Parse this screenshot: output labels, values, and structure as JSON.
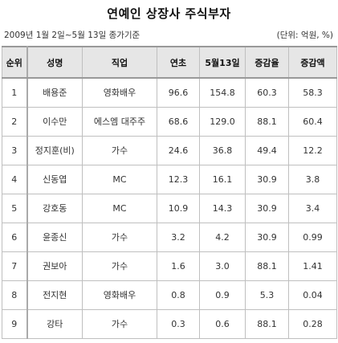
{
  "title": "연예인 상장사 주식부자",
  "period_note": "2009년 1월 2일~5월 13일 종가기준",
  "unit_note": "(단위: 억원, %)",
  "table": {
    "headers": [
      "순위",
      "성명",
      "직업",
      "연초",
      "5월13일",
      "증감율",
      "증감액"
    ],
    "rows": [
      [
        "1",
        "배용준",
        "영화배우",
        "96.6",
        "154.8",
        "60.3",
        "58.3"
      ],
      [
        "2",
        "이수만",
        "에스엠 대주주",
        "68.6",
        "129.0",
        "88.1",
        "60.4"
      ],
      [
        "3",
        "정지훈(비)",
        "가수",
        "24.6",
        "36.8",
        "49.4",
        "12.2"
      ],
      [
        "4",
        "신동엽",
        "MC",
        "12.3",
        "16.1",
        "30.9",
        "3.8"
      ],
      [
        "5",
        "강호동",
        "MC",
        "10.9",
        "14.3",
        "30.9",
        "3.4"
      ],
      [
        "6",
        "윤종신",
        "가수",
        "3.2",
        "4.2",
        "30.9",
        "0.99"
      ],
      [
        "7",
        "권보아",
        "가수",
        "1.6",
        "3.0",
        "88.1",
        "1.41"
      ],
      [
        "8",
        "전지현",
        "영화배우",
        "0.8",
        "0.9",
        "5.3",
        "0.04"
      ],
      [
        "9",
        "강타",
        "가수",
        "0.3",
        "0.6",
        "88.1",
        "0.28"
      ]
    ]
  }
}
